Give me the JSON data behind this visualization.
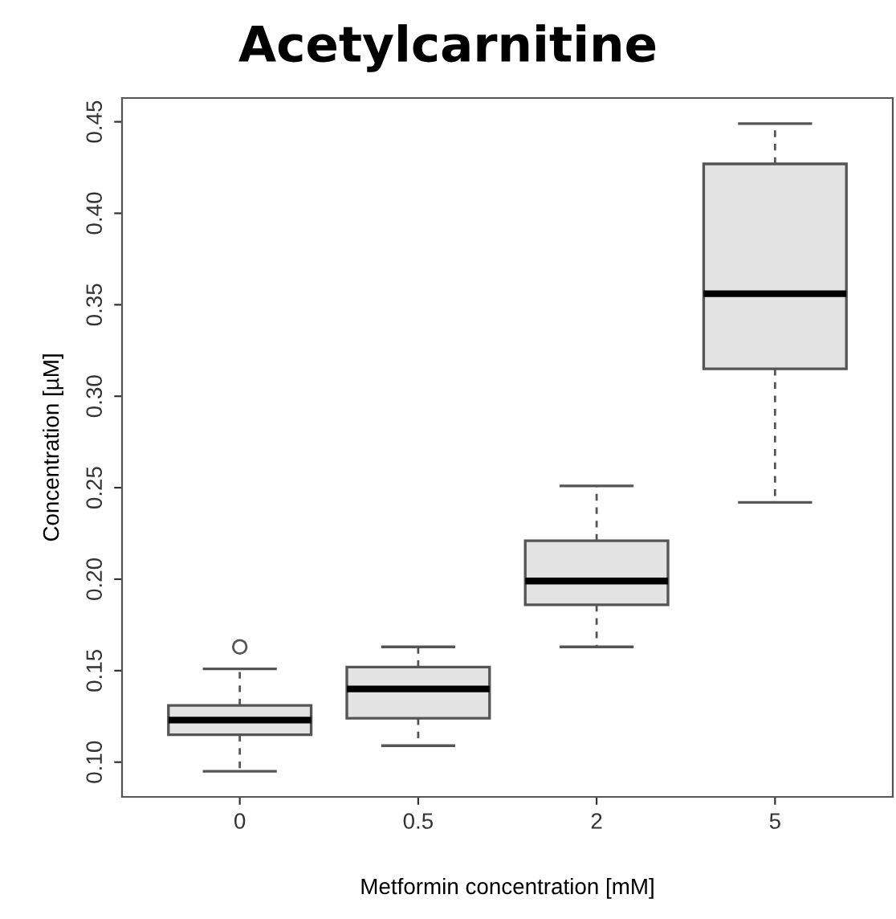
{
  "chart_data": {
    "type": "box",
    "title": "Acetylcarnitine",
    "xlabel": "Metformin concentration [mM]",
    "ylabel": "Concentration [µM]",
    "categories": [
      "0",
      "0.5",
      "2",
      "5"
    ],
    "boxes": [
      {
        "low": 0.095,
        "q1": 0.115,
        "median": 0.123,
        "q3": 0.131,
        "high": 0.151,
        "outliers": [
          0.163
        ]
      },
      {
        "low": 0.109,
        "q1": 0.124,
        "median": 0.14,
        "q3": 0.152,
        "high": 0.163
      },
      {
        "low": 0.163,
        "q1": 0.186,
        "median": 0.199,
        "q3": 0.221,
        "high": 0.251
      },
      {
        "low": 0.242,
        "q1": 0.315,
        "median": 0.356,
        "q3": 0.427,
        "high": 0.449
      }
    ],
    "color": "#e3e3e3",
    "ylim": [
      0.081,
      0.463
    ],
    "yticks": [
      {
        "value": 0.1,
        "label": "0.10"
      },
      {
        "value": 0.15,
        "label": "0.15"
      },
      {
        "value": 0.2,
        "label": "0.20"
      },
      {
        "value": 0.25,
        "label": "0.25"
      },
      {
        "value": 0.3,
        "label": "0.30"
      },
      {
        "value": 0.35,
        "label": "0.35"
      },
      {
        "value": 0.4,
        "label": "0.40"
      },
      {
        "value": 0.45,
        "label": "0.45"
      }
    ],
    "grid": false
  }
}
